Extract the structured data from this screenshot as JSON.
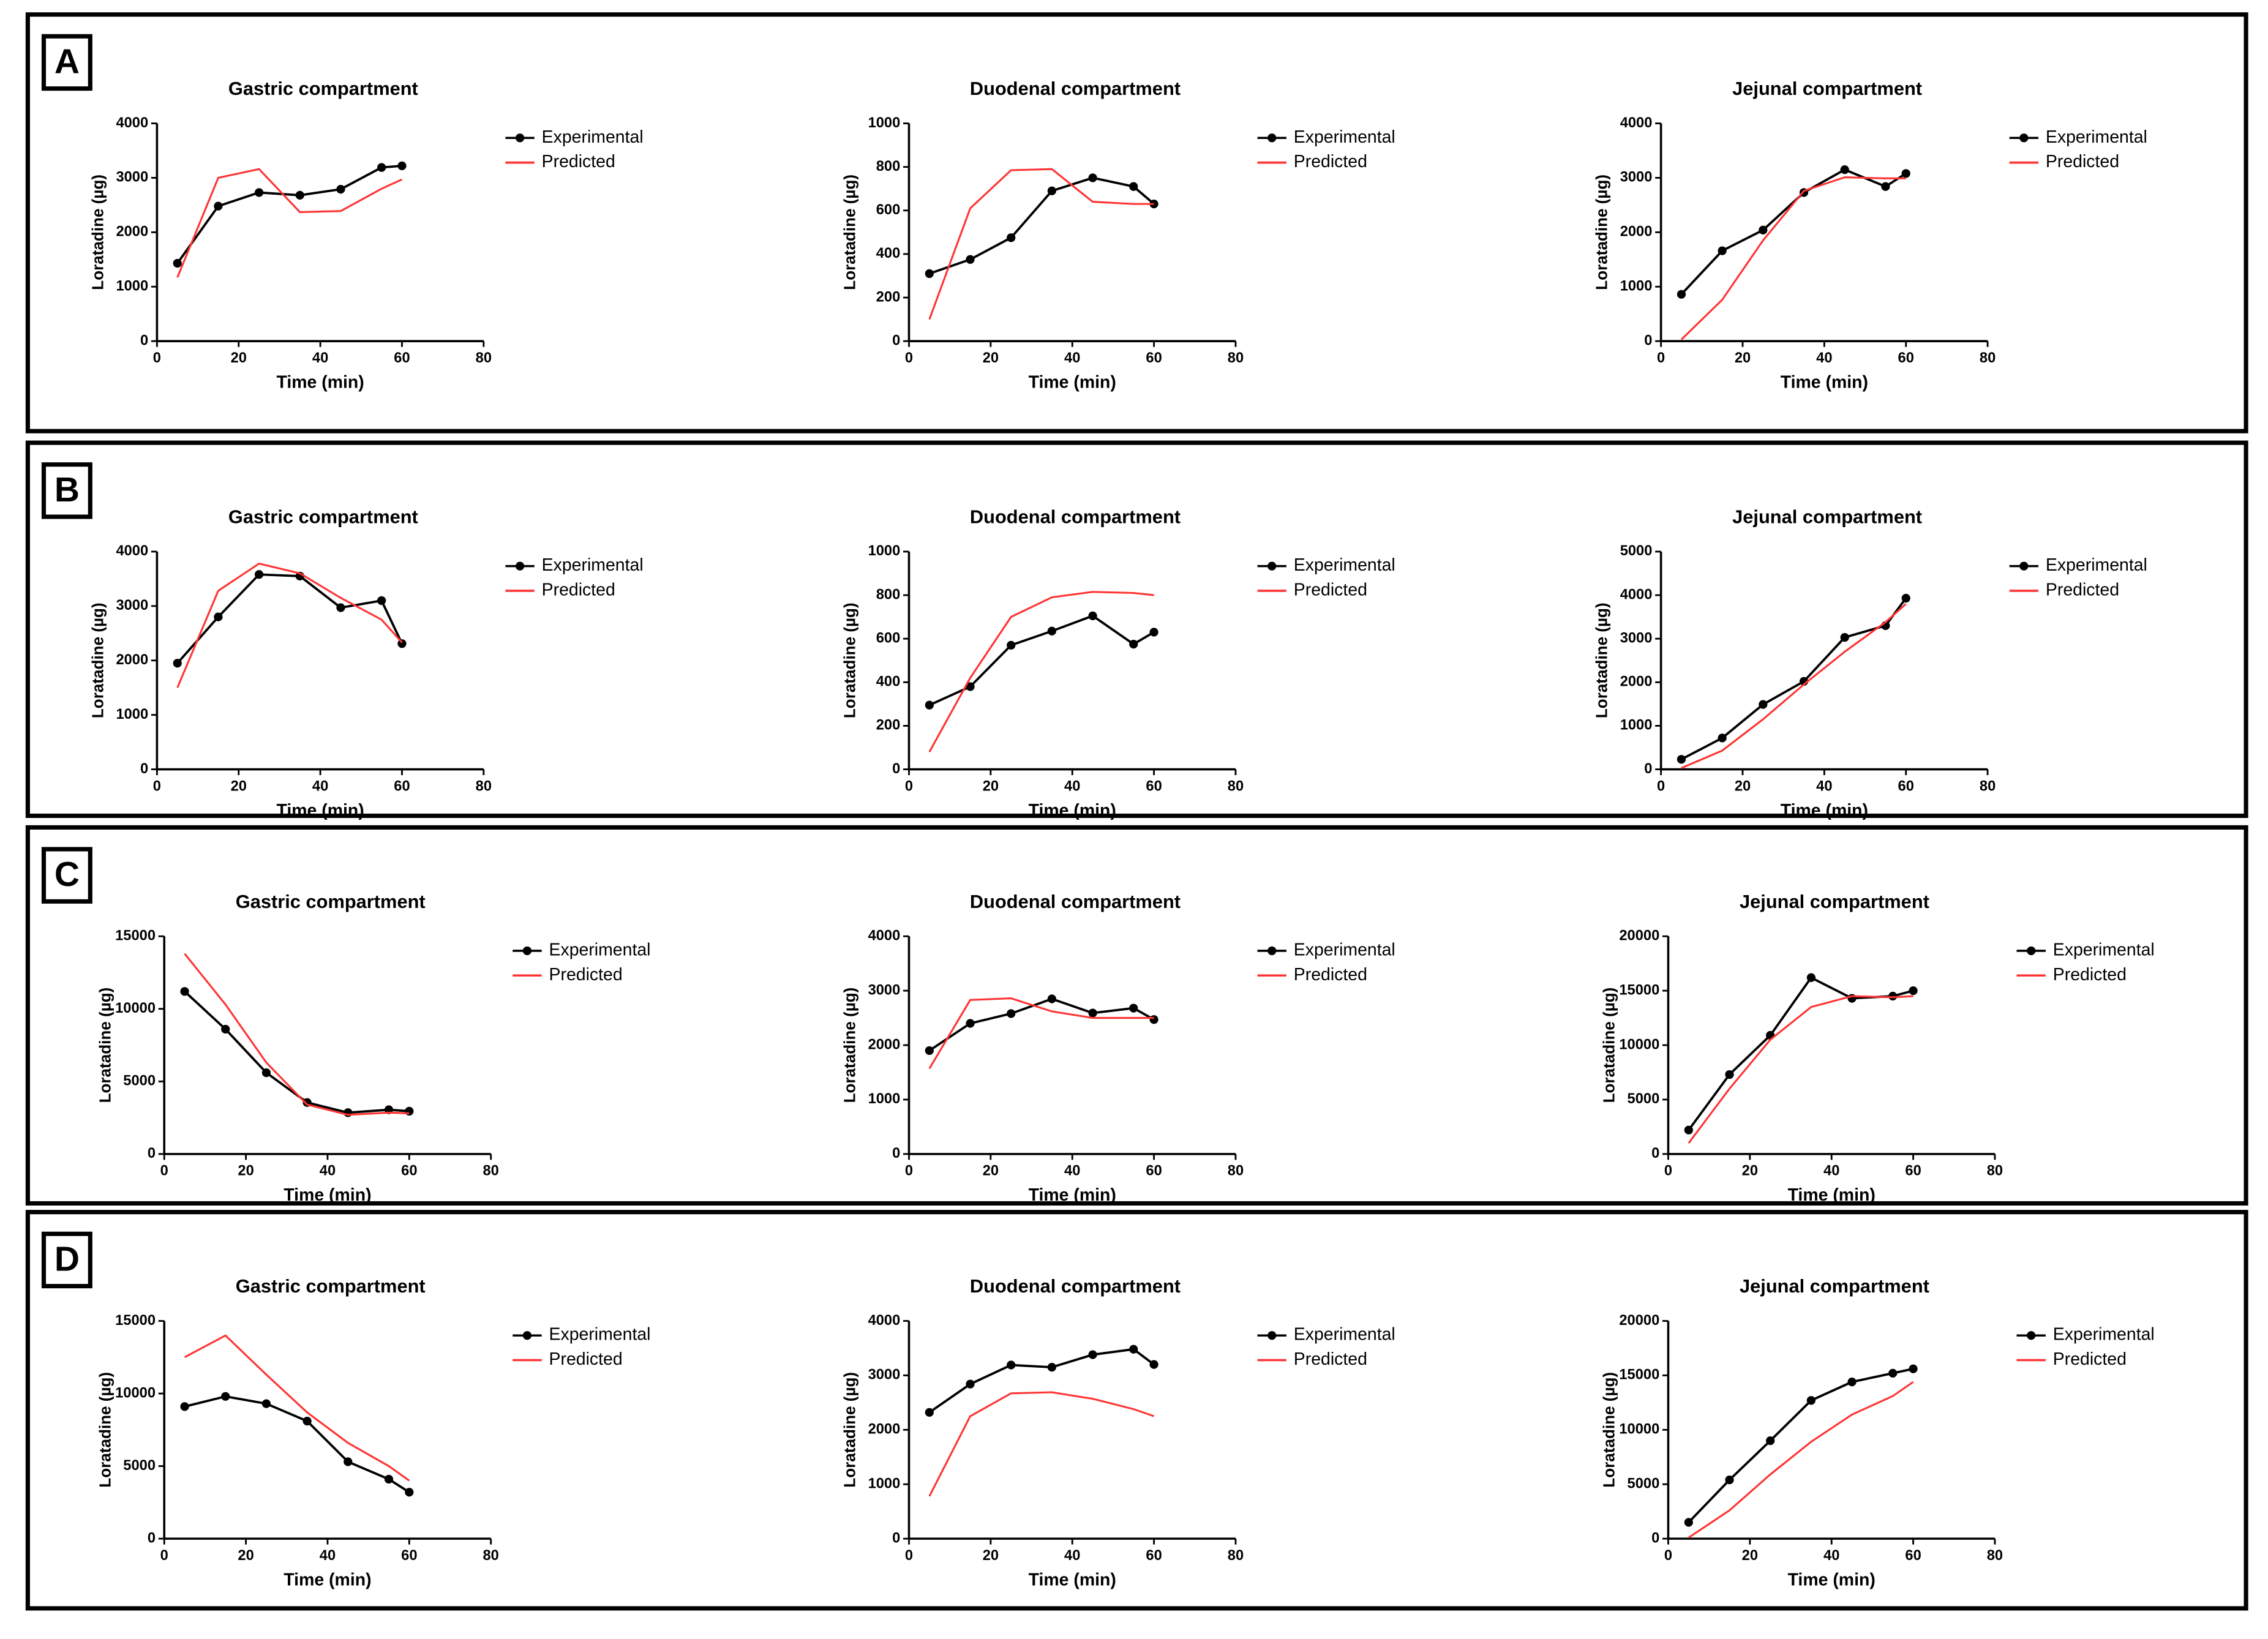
{
  "panel_labels": [
    "A",
    "B",
    "C",
    "D"
  ],
  "chart_data": [
    {
      "type": "line",
      "title": "Gastric compartment",
      "xlabel": "Time (min)",
      "ylabel": "Loratadine (µg)",
      "x": [
        5,
        15,
        25,
        35,
        45,
        55,
        60
      ],
      "xlim": [
        0,
        80
      ],
      "xticks": [
        0,
        20,
        40,
        60,
        80
      ],
      "ylim": [
        0,
        4000
      ],
      "yticks": [
        0,
        1000,
        2000,
        3000,
        4000
      ],
      "series": [
        {
          "name": "Experimental",
          "color": "#000000",
          "values": [
            1430,
            2480,
            2730,
            2680,
            2790,
            3190,
            3220
          ]
        },
        {
          "name": "Predicted",
          "color": "#ff3333",
          "values": [
            1170,
            3000,
            3160,
            2370,
            2390,
            2800,
            2970
          ]
        }
      ]
    },
    {
      "type": "line",
      "title": "Duodenal compartment",
      "xlabel": "Time (min)",
      "ylabel": "Loratadine (µg)",
      "x": [
        5,
        15,
        25,
        35,
        45,
        55,
        60
      ],
      "xlim": [
        0,
        80
      ],
      "xticks": [
        0,
        20,
        40,
        60,
        80
      ],
      "ylim": [
        0,
        1000
      ],
      "yticks": [
        0,
        200,
        400,
        600,
        800,
        1000
      ],
      "series": [
        {
          "name": "Experimental",
          "color": "#000000",
          "values": [
            310,
            375,
            475,
            690,
            750,
            710,
            630
          ]
        },
        {
          "name": "Predicted",
          "color": "#ff3333",
          "values": [
            100,
            610,
            785,
            790,
            640,
            630,
            630
          ]
        }
      ]
    },
    {
      "type": "line",
      "title": "Jejunal compartment",
      "xlabel": "Time (min)",
      "ylabel": "Loratadine (µg)",
      "x": [
        5,
        15,
        25,
        35,
        45,
        55,
        60
      ],
      "xlim": [
        0,
        80
      ],
      "xticks": [
        0,
        20,
        40,
        60,
        80
      ],
      "ylim": [
        0,
        4000
      ],
      "yticks": [
        0,
        1000,
        2000,
        3000,
        4000
      ],
      "series": [
        {
          "name": "Experimental",
          "color": "#000000",
          "values": [
            860,
            1660,
            2040,
            2730,
            3150,
            2840,
            3080
          ]
        },
        {
          "name": "Predicted",
          "color": "#ff3333",
          "values": [
            30,
            760,
            1850,
            2760,
            3010,
            2990,
            2990
          ]
        }
      ]
    },
    {
      "type": "line",
      "title": "Gastric compartment",
      "xlabel": "Time (min)",
      "ylabel": "Loratadine (µg)",
      "x": [
        5,
        15,
        25,
        35,
        45,
        55,
        60
      ],
      "xlim": [
        0,
        80
      ],
      "xticks": [
        0,
        20,
        40,
        60,
        80
      ],
      "ylim": [
        0,
        4000
      ],
      "yticks": [
        0,
        1000,
        2000,
        3000,
        4000
      ],
      "series": [
        {
          "name": "Experimental",
          "color": "#000000",
          "values": [
            1950,
            2800,
            3580,
            3550,
            2970,
            3100,
            2310
          ]
        },
        {
          "name": "Predicted",
          "color": "#ff3333",
          "values": [
            1500,
            3280,
            3780,
            3600,
            3150,
            2750,
            2330
          ]
        }
      ]
    },
    {
      "type": "line",
      "title": "Duodenal compartment",
      "xlabel": "Time (min)",
      "ylabel": "Loratadine (µg)",
      "x": [
        5,
        15,
        25,
        35,
        45,
        55,
        60
      ],
      "xlim": [
        0,
        80
      ],
      "xticks": [
        0,
        20,
        40,
        60,
        80
      ],
      "ylim": [
        0,
        1000
      ],
      "yticks": [
        0,
        200,
        400,
        600,
        800,
        1000
      ],
      "series": [
        {
          "name": "Experimental",
          "color": "#000000",
          "values": [
            295,
            380,
            570,
            635,
            705,
            575,
            630
          ]
        },
        {
          "name": "Predicted",
          "color": "#ff3333",
          "values": [
            80,
            420,
            700,
            790,
            815,
            810,
            800
          ]
        }
      ]
    },
    {
      "type": "line",
      "title": "Jejunal compartment",
      "xlabel": "Time (min)",
      "ylabel": "Loratadine (µg)",
      "x": [
        5,
        15,
        25,
        35,
        45,
        55,
        60
      ],
      "xlim": [
        0,
        80
      ],
      "xticks": [
        0,
        20,
        40,
        60,
        80
      ],
      "ylim": [
        0,
        5000
      ],
      "yticks": [
        0,
        1000,
        2000,
        3000,
        4000,
        5000
      ],
      "series": [
        {
          "name": "Experimental",
          "color": "#000000",
          "values": [
            230,
            720,
            1490,
            2020,
            3030,
            3300,
            3930
          ]
        },
        {
          "name": "Predicted",
          "color": "#ff3333",
          "values": [
            30,
            430,
            1150,
            1950,
            2700,
            3380,
            3800
          ]
        }
      ]
    },
    {
      "type": "line",
      "title": "Gastric compartment",
      "xlabel": "Time (min)",
      "ylabel": "Loratadine (µg)",
      "x": [
        5,
        15,
        25,
        35,
        45,
        55,
        60
      ],
      "xlim": [
        0,
        80
      ],
      "xticks": [
        0,
        20,
        40,
        60,
        80
      ],
      "ylim": [
        0,
        15000
      ],
      "yticks": [
        0,
        5000,
        10000,
        15000
      ],
      "series": [
        {
          "name": "Experimental",
          "color": "#000000",
          "values": [
            11200,
            8600,
            5600,
            3550,
            2850,
            3050,
            2950
          ]
        },
        {
          "name": "Predicted",
          "color": "#ff3333",
          "values": [
            13800,
            10300,
            6300,
            3400,
            2700,
            2850,
            2800
          ]
        }
      ]
    },
    {
      "type": "line",
      "title": "Duodenal compartment",
      "xlabel": "Time (min)",
      "ylabel": "Loratadine (µg)",
      "x": [
        5,
        15,
        25,
        35,
        45,
        55,
        60
      ],
      "xlim": [
        0,
        80
      ],
      "xticks": [
        0,
        20,
        40,
        60,
        80
      ],
      "ylim": [
        0,
        4000
      ],
      "yticks": [
        0,
        1000,
        2000,
        3000,
        4000
      ],
      "series": [
        {
          "name": "Experimental",
          "color": "#000000",
          "values": [
            1900,
            2400,
            2580,
            2850,
            2590,
            2680,
            2470
          ]
        },
        {
          "name": "Predicted",
          "color": "#ff3333",
          "values": [
            1570,
            2830,
            2860,
            2620,
            2500,
            2500,
            2500
          ]
        }
      ]
    },
    {
      "type": "line",
      "title": "Jejunal compartment",
      "xlabel": "Time (min)",
      "ylabel": "Loratadine (µg)",
      "x": [
        5,
        15,
        25,
        35,
        45,
        55,
        60
      ],
      "xlim": [
        0,
        80
      ],
      "xticks": [
        0,
        20,
        40,
        60,
        80
      ],
      "ylim": [
        0,
        20000
      ],
      "yticks": [
        0,
        5000,
        10000,
        15000,
        20000
      ],
      "series": [
        {
          "name": "Experimental",
          "color": "#000000",
          "values": [
            2200,
            7300,
            10900,
            16200,
            14300,
            14500,
            15000
          ]
        },
        {
          "name": "Predicted",
          "color": "#ff3333",
          "values": [
            1000,
            6000,
            10500,
            13500,
            14500,
            14400,
            14500
          ]
        }
      ]
    },
    {
      "type": "line",
      "title": "Gastric compartment",
      "xlabel": "Time (min)",
      "ylabel": "Loratadine (µg)",
      "x": [
        5,
        15,
        25,
        35,
        45,
        55,
        60
      ],
      "xlim": [
        0,
        80
      ],
      "xticks": [
        0,
        20,
        40,
        60,
        80
      ],
      "ylim": [
        0,
        15000
      ],
      "yticks": [
        0,
        5000,
        10000,
        15000
      ],
      "series": [
        {
          "name": "Experimental",
          "color": "#000000",
          "values": [
            9100,
            9800,
            9300,
            8100,
            5300,
            4100,
            3200
          ]
        },
        {
          "name": "Predicted",
          "color": "#ff3333",
          "values": [
            12500,
            14000,
            11300,
            8700,
            6600,
            5000,
            4000
          ]
        }
      ]
    },
    {
      "type": "line",
      "title": "Duodenal compartment",
      "xlabel": "Time (min)",
      "ylabel": "Loratadine (µg)",
      "x": [
        5,
        15,
        25,
        35,
        45,
        55,
        60
      ],
      "xlim": [
        0,
        80
      ],
      "xticks": [
        0,
        20,
        40,
        60,
        80
      ],
      "ylim": [
        0,
        4000
      ],
      "yticks": [
        0,
        1000,
        2000,
        3000,
        4000
      ],
      "series": [
        {
          "name": "Experimental",
          "color": "#000000",
          "values": [
            2320,
            2840,
            3190,
            3150,
            3380,
            3480,
            3200
          ]
        },
        {
          "name": "Predicted",
          "color": "#ff3333",
          "values": [
            780,
            2250,
            2670,
            2690,
            2570,
            2380,
            2250
          ]
        }
      ]
    },
    {
      "type": "line",
      "title": "Jejunal compartment",
      "xlabel": "Time (min)",
      "ylabel": "Loratadine (µg)",
      "x": [
        5,
        15,
        25,
        35,
        45,
        55,
        60
      ],
      "xlim": [
        0,
        80
      ],
      "xticks": [
        0,
        20,
        40,
        60,
        80
      ],
      "ylim": [
        0,
        20000
      ],
      "yticks": [
        0,
        5000,
        10000,
        15000,
        20000
      ],
      "series": [
        {
          "name": "Experimental",
          "color": "#000000",
          "values": [
            1500,
            5400,
            9000,
            12700,
            14400,
            15200,
            15600
          ]
        },
        {
          "name": "Predicted",
          "color": "#ff3333",
          "values": [
            100,
            2600,
            5900,
            8900,
            11400,
            13100,
            14400
          ]
        }
      ]
    }
  ]
}
